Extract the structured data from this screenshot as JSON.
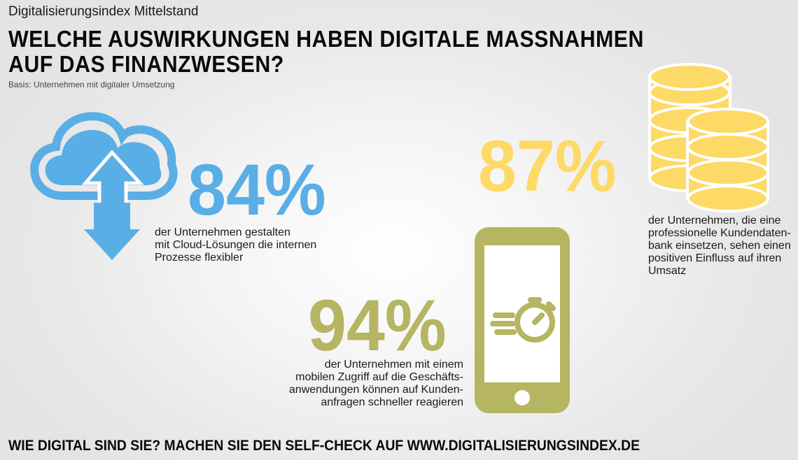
{
  "header": {
    "kicker": "Digitalisierungsindex Mittelstand",
    "headline_line1": "WELCHE AUSWIRKUNGEN HABEN DIGITALE MASSNAHMEN",
    "headline_line2": "AUF DAS FINANZWESEN?",
    "basis": "Basis: Unternehmen mit digitaler Umsetzung"
  },
  "stats": {
    "cloud": {
      "value": "84%",
      "line1": "der Unternehmen gestalten",
      "line2": "mit Cloud-Lösungen die internen",
      "line3": "Prozesse flexibler",
      "color": "#5aaee6",
      "icon": "cloud-upload-icon"
    },
    "coins": {
      "value": "87%",
      "line1": "der Unternehmen, die eine",
      "line2": "professionelle Kundendaten-",
      "line3": "bank einsetzen, sehen einen",
      "line4": "positiven Einfluss auf ihren",
      "line5": "Umsatz",
      "color": "#fdd966",
      "icon": "coins-stack-icon"
    },
    "phone": {
      "value": "94%",
      "line1": "der Unternehmen mit einem",
      "line2": "mobilen Zugriff auf die Geschäfts-",
      "line3": "anwendungen können auf Kunden-",
      "line4": "anfragen schneller reagieren",
      "color": "#b5b562",
      "icon": "smartphone-stopwatch-icon"
    }
  },
  "footer": {
    "cta": "WIE DIGITAL SIND SIE? MACHEN SIE DEN SELF-CHECK AUF WWW.DIGITALISIERUNGSINDEX.DE"
  }
}
